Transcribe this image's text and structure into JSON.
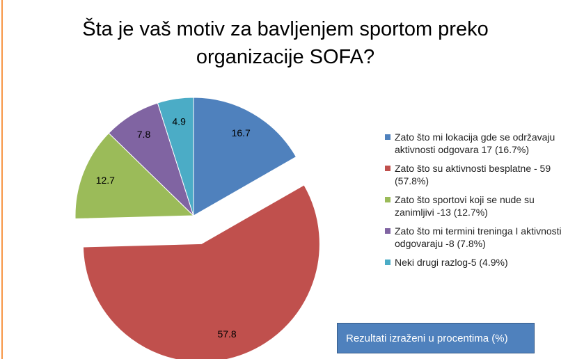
{
  "chart_data": {
    "type": "pie",
    "title": "Šta je vaš motiv za bavljenjem sportom preko organizacije SOFA?",
    "categories": [
      "Zato što mi lokacija gde se održavaju aktivnosti odgovara 17 (16.7%)",
      "Zato što su aktivnosti besplatne - 59 (57.8%)",
      "Zato što sportovi koji se nude su zanimljivi -13 (12.7%)",
      "Zato što mi termini treninga I aktivnosti odgovaraju -8 (7.8%)",
      "Neki drugi razlog-5 (4.9%)"
    ],
    "values": [
      16.7,
      57.8,
      12.7,
      7.8,
      4.9
    ],
    "colors": [
      "#4f81bd",
      "#c0504d",
      "#9bbb59",
      "#8064a2",
      "#4bacc6"
    ],
    "exploded": [
      false,
      true,
      false,
      false,
      false
    ],
    "annotation": "Rezultati izraženi u procentima (%)"
  }
}
